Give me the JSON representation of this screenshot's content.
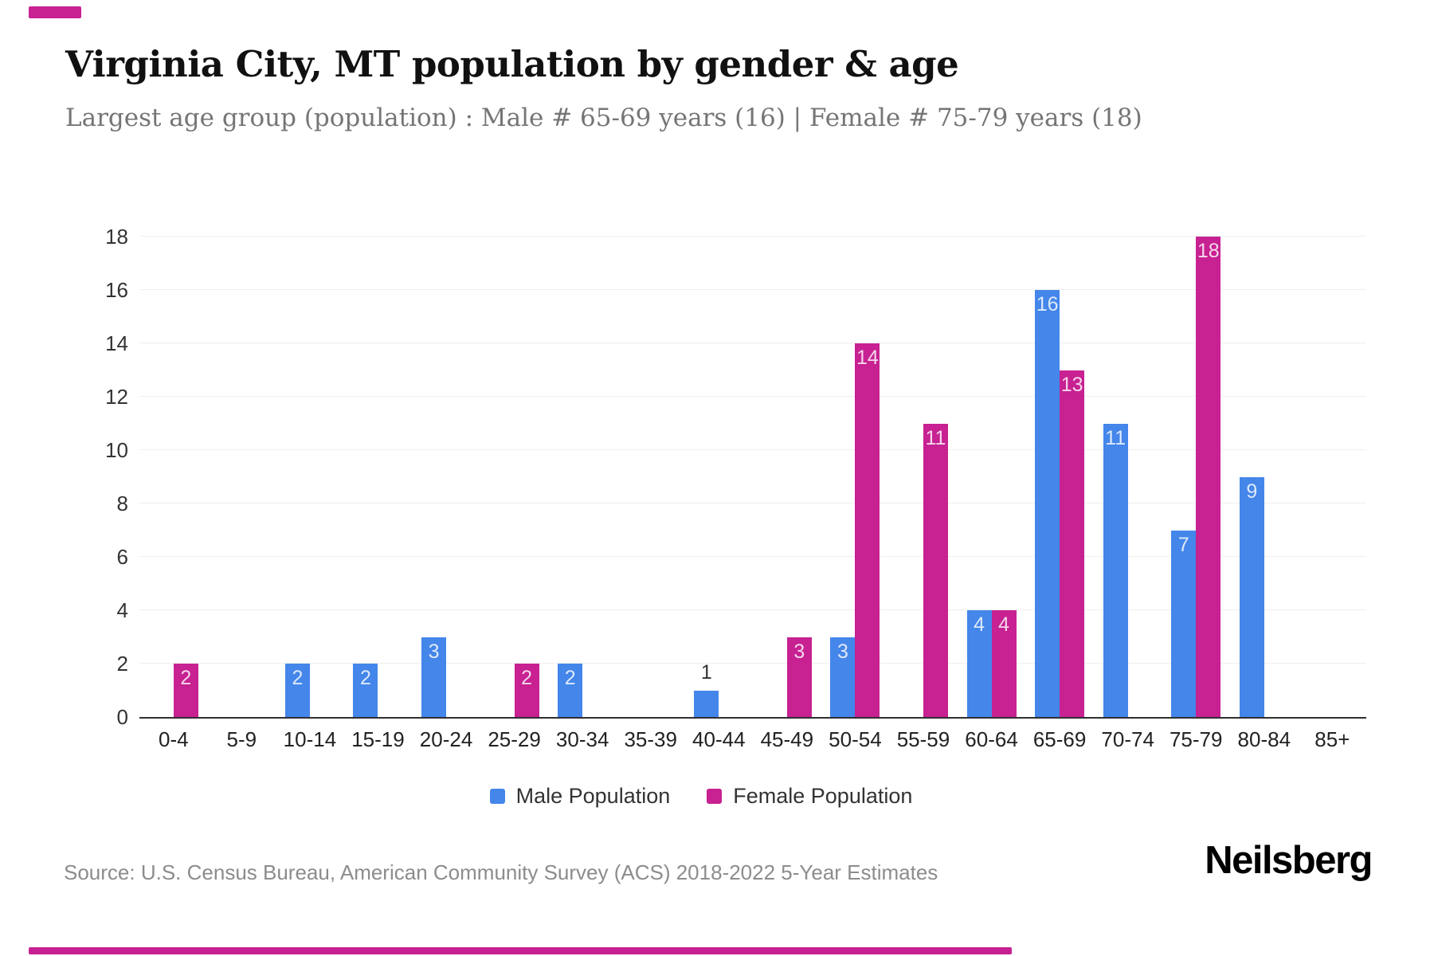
{
  "header": {
    "title": "Virginia City, MT population by gender & age",
    "subtitle": "Largest age group (population) : Male # 65-69 years (16) | Female # 75-79 years (18)"
  },
  "legend": {
    "items": [
      {
        "label": "Male Population",
        "color": "#4486EA"
      },
      {
        "label": "Female Population",
        "color": "#C72192"
      }
    ]
  },
  "footer": {
    "source": "Source: U.S. Census Bureau, American Community Survey (ACS) 2018-2022 5-Year Estimates"
  },
  "branding": {
    "logo_text": "Neilsberg",
    "accent_color": "#C72192"
  },
  "chart_data": {
    "type": "bar",
    "title": "Virginia City, MT population by gender & age",
    "subtitle": "Largest age group (population) : Male # 65-69 years (16) | Female # 75-79 years (18)",
    "categories": [
      "0-4",
      "5-9",
      "10-14",
      "15-19",
      "20-24",
      "25-29",
      "30-34",
      "35-39",
      "40-44",
      "45-49",
      "50-54",
      "55-59",
      "60-64",
      "65-69",
      "70-74",
      "75-79",
      "80-84",
      "85+"
    ],
    "series": [
      {
        "name": "Male Population",
        "color": "#4486EA",
        "values": [
          0,
          0,
          2,
          2,
          3,
          0,
          2,
          0,
          1,
          0,
          3,
          0,
          4,
          16,
          11,
          7,
          9,
          0
        ]
      },
      {
        "name": "Female Population",
        "color": "#C72192",
        "values": [
          2,
          0,
          0,
          0,
          0,
          2,
          0,
          0,
          0,
          3,
          14,
          11,
          4,
          13,
          0,
          18,
          0,
          0
        ]
      }
    ],
    "xlabel": "",
    "ylabel": "",
    "ylim": [
      0,
      18
    ],
    "yticks": [
      0,
      2,
      4,
      6,
      8,
      10,
      12,
      14,
      16,
      18
    ],
    "grid": true,
    "legend_position": "bottom",
    "bar_value_labels": true
  }
}
